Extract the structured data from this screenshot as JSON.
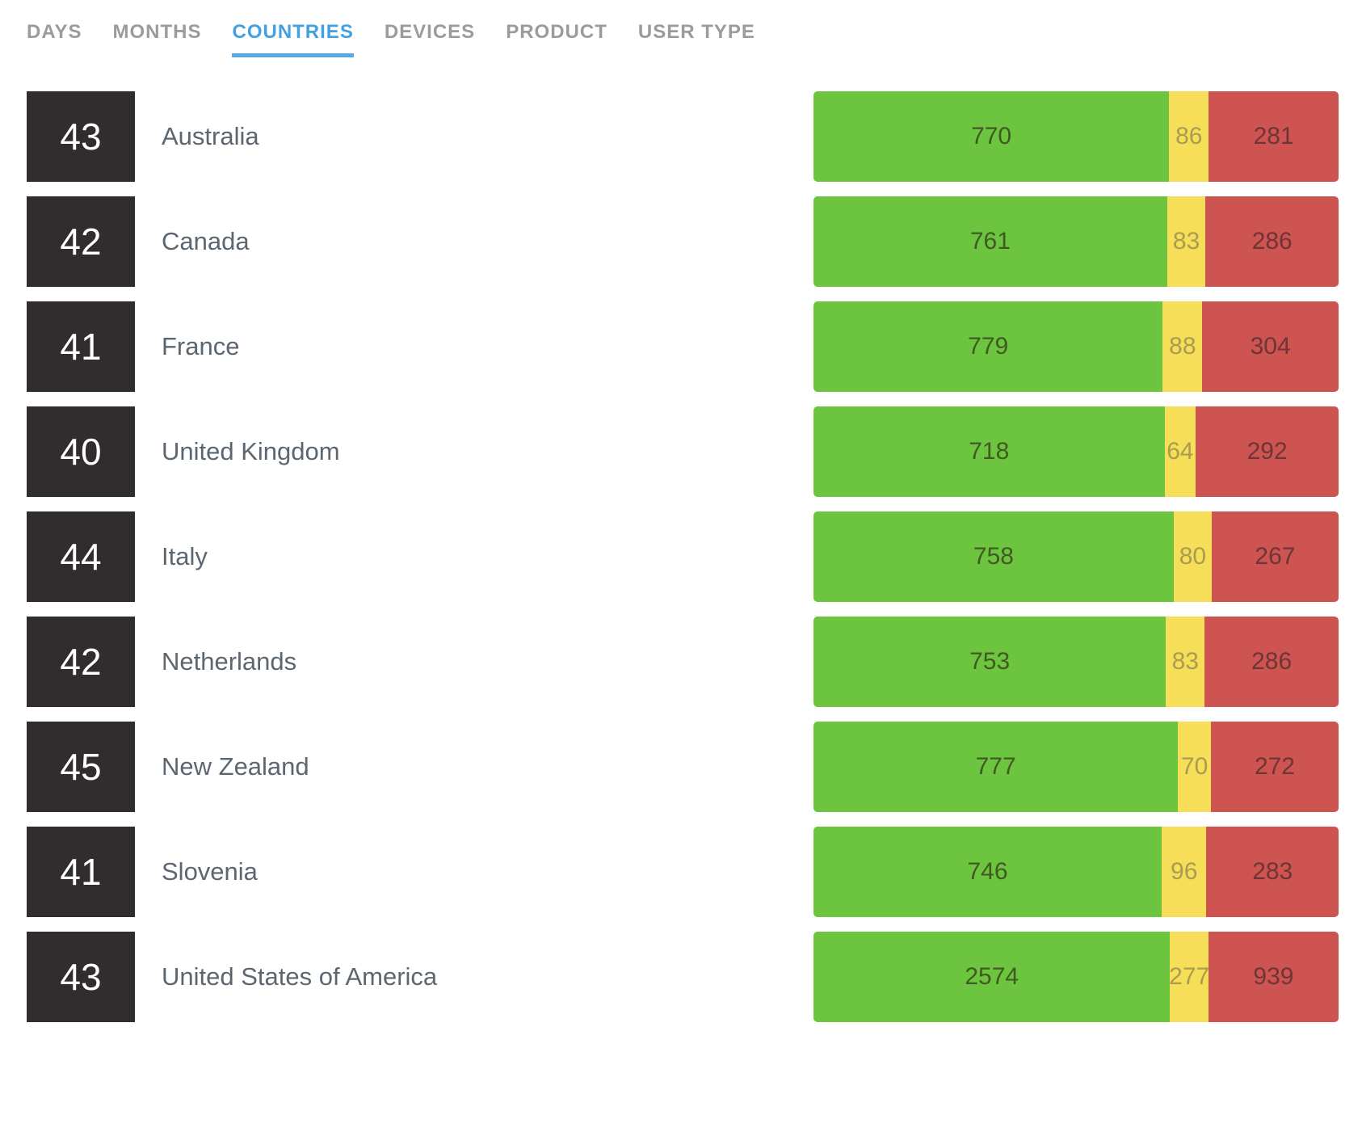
{
  "tabs": [
    {
      "label": "DAYS",
      "active": false
    },
    {
      "label": "MONTHS",
      "active": false
    },
    {
      "label": "COUNTRIES",
      "active": true
    },
    {
      "label": "DEVICES",
      "active": false
    },
    {
      "label": "PRODUCT",
      "active": false
    },
    {
      "label": "USER TYPE",
      "active": false
    }
  ],
  "rows": [
    {
      "rank": "43",
      "country": "Australia",
      "green": 770,
      "yellow": 86,
      "red": 281
    },
    {
      "rank": "42",
      "country": "Canada",
      "green": 761,
      "yellow": 83,
      "red": 286
    },
    {
      "rank": "41",
      "country": "France",
      "green": 779,
      "yellow": 88,
      "red": 304
    },
    {
      "rank": "40",
      "country": "United Kingdom",
      "green": 718,
      "yellow": 64,
      "red": 292
    },
    {
      "rank": "44",
      "country": "Italy",
      "green": 758,
      "yellow": 80,
      "red": 267
    },
    {
      "rank": "42",
      "country": "Netherlands",
      "green": 753,
      "yellow": 83,
      "red": 286
    },
    {
      "rank": "45",
      "country": "New Zealand",
      "green": 777,
      "yellow": 70,
      "red": 272
    },
    {
      "rank": "41",
      "country": "Slovenia",
      "green": 746,
      "yellow": 96,
      "red": 283
    },
    {
      "rank": "43",
      "country": "United States of America",
      "green": 2574,
      "yellow": 277,
      "red": 939
    }
  ],
  "chart_data": {
    "type": "bar",
    "subtype": "stacked-horizontal",
    "categories": [
      "Australia",
      "Canada",
      "France",
      "United Kingdom",
      "Italy",
      "Netherlands",
      "New Zealand",
      "Slovenia",
      "United States of America"
    ],
    "series": [
      {
        "name": "green",
        "values": [
          770,
          761,
          779,
          718,
          758,
          753,
          777,
          746,
          2574
        ]
      },
      {
        "name": "yellow",
        "values": [
          86,
          83,
          88,
          64,
          80,
          83,
          70,
          96,
          277
        ]
      },
      {
        "name": "red",
        "values": [
          281,
          286,
          304,
          292,
          267,
          286,
          272,
          283,
          939
        ]
      }
    ],
    "rank_scores": [
      "43",
      "42",
      "41",
      "40",
      "44",
      "42",
      "45",
      "41",
      "43"
    ],
    "legend_position": "none",
    "grid": false,
    "note": "each bar normalized to full width; segment widths proportional to values"
  },
  "colors": {
    "green": "#6cc43f",
    "yellow": "#f6de59",
    "red": "#cd5451",
    "rank_bg": "#312d2e",
    "country": "#5b6670",
    "tab_inactive": "#9b9b9b",
    "tab_active": "#42a1de",
    "tab_underline": "#54aae1",
    "label_on_green": "#405b21",
    "label_on_yellow": "#a89d4f",
    "label_on_red": "#6e3436"
  }
}
